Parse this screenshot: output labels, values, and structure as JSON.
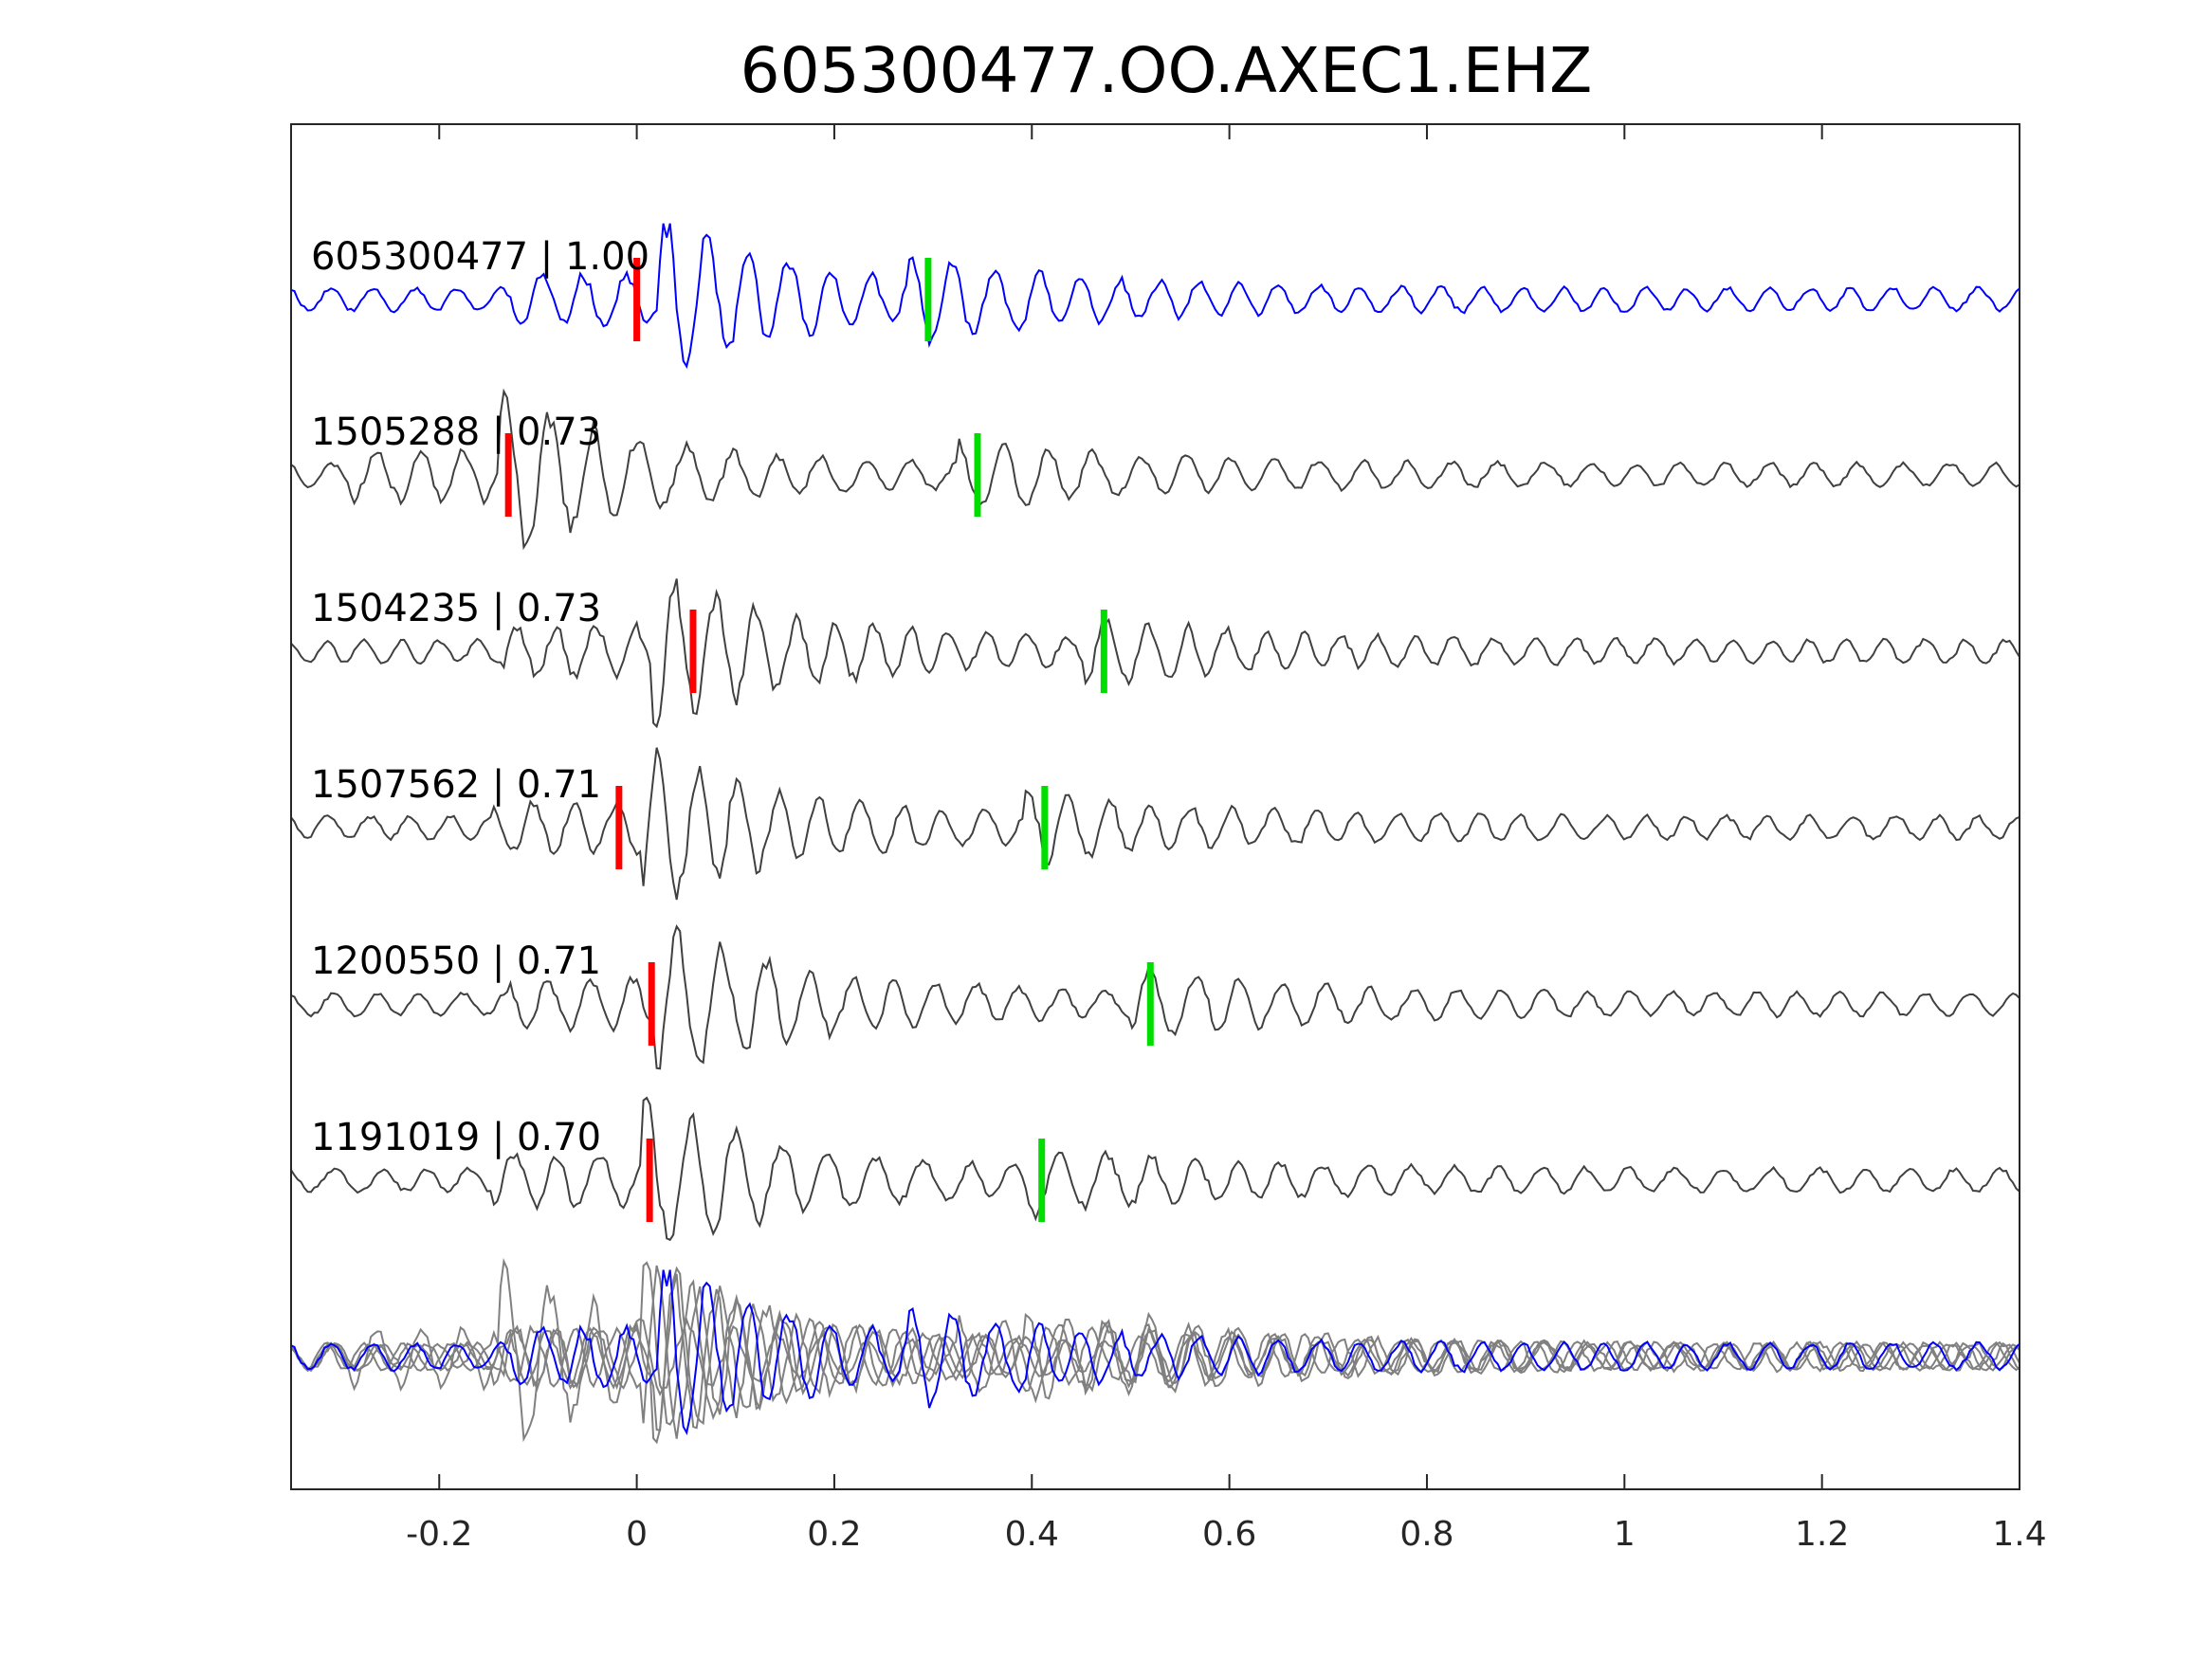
{
  "chart_data": {
    "type": "line",
    "title": "605300477.OO.AXEC1.EHZ",
    "xlabel": "",
    "ylabel": "",
    "xlim": [
      -0.35,
      1.4
    ],
    "x_ticks": [
      "-0.2",
      "0",
      "0.2",
      "0.4",
      "0.6",
      "0.8",
      "1",
      "1.2",
      "1.4"
    ],
    "x_tick_values": [
      -0.2,
      0,
      0.2,
      0.4,
      0.6,
      0.8,
      1,
      1.2,
      1.4
    ],
    "grid": false,
    "colors": {
      "master_trace": "#0000ff",
      "neighbor_trace": "#404040",
      "stack_trace": "#808080",
      "p_pick": "#ff0000",
      "s_pick": "#00dd00",
      "axes": "#262626"
    },
    "traces": [
      {
        "label": "605300477 | 1.00",
        "event_id": "605300477",
        "correlation": 1.0,
        "color": "#0000ff",
        "p_pick": 0.0,
        "s_pick": 0.295,
        "onset": 0.02,
        "freq": 24,
        "seed": 11
      },
      {
        "label": "1505288 | 0.73",
        "event_id": "1505288",
        "correlation": 0.73,
        "color": "#404040",
        "p_pick": -0.13,
        "s_pick": 0.345,
        "onset": -0.14,
        "freq": 22,
        "seed": 23
      },
      {
        "label": "1504235 | 0.73",
        "event_id": "1504235",
        "correlation": 0.73,
        "color": "#404040",
        "p_pick": 0.057,
        "s_pick": 0.473,
        "onset": 0.015,
        "freq": 25,
        "seed": 37
      },
      {
        "label": "1507562 | 0.71",
        "event_id": "1507562",
        "correlation": 0.71,
        "color": "#404040",
        "p_pick": -0.018,
        "s_pick": 0.413,
        "onset": 0.005,
        "freq": 24,
        "seed": 41
      },
      {
        "label": "1200550 | 0.71",
        "event_id": "1200550",
        "correlation": 0.71,
        "color": "#404040",
        "p_pick": 0.015,
        "s_pick": 0.52,
        "onset": 0.02,
        "freq": 23,
        "seed": 53
      },
      {
        "label": "1191019 | 0.70",
        "event_id": "1191019",
        "correlation": 0.7,
        "color": "#404040",
        "p_pick": 0.013,
        "s_pick": 0.41,
        "onset": 0.005,
        "freq": 22,
        "seed": 67
      }
    ],
    "overlay": {
      "label": "",
      "color_master": "#0000ff",
      "color_others": "#808080"
    }
  }
}
